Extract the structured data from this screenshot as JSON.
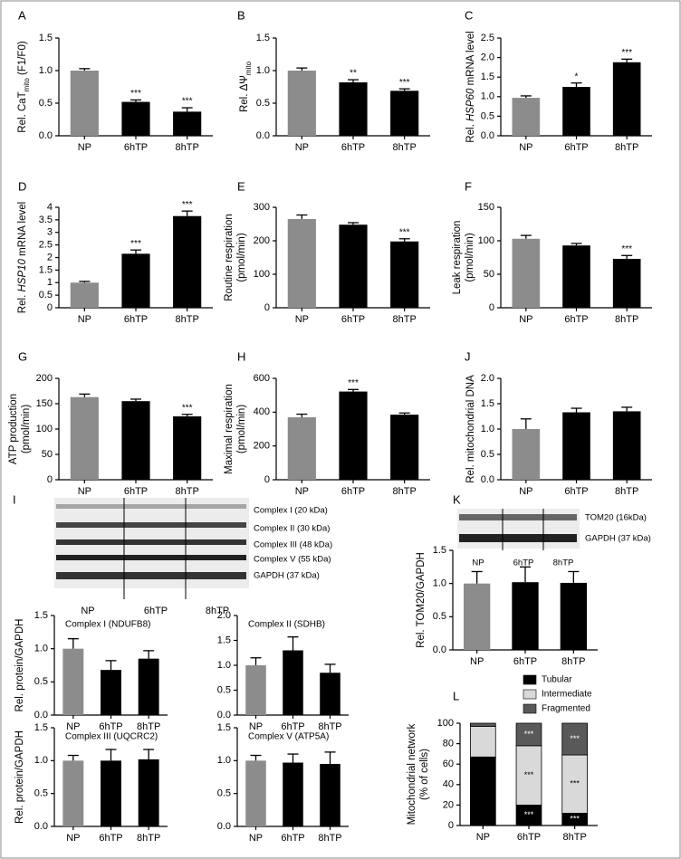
{
  "blot_I": {
    "panel": "I",
    "bands": [
      "Complex I (20 kDa)",
      "Complex II (30 kDa)",
      "Complex III (48 kDa)",
      "Complex V (55 kDa)",
      "GAPDH (37 kDa)"
    ],
    "lanes": [
      "NP",
      "6hTP",
      "8hTP"
    ]
  },
  "blot_K": {
    "bands": [
      "TOM20 (16kDa)",
      "GAPDH (37 kDa)"
    ],
    "lanes": [
      "NP",
      "6hTP",
      "8hTP"
    ]
  },
  "chart_data": [
    {
      "type": "bar",
      "panel": "A",
      "ylabel": "Rel. CaT",
      "ylabel_sub": "mito",
      "ylabel_end": " (F1/F0)",
      "categories": [
        "NP",
        "6hTP",
        "8hTP"
      ],
      "values": [
        1.0,
        0.52,
        0.37
      ],
      "errors": [
        0.03,
        0.03,
        0.06
      ],
      "annotations": [
        null,
        "***",
        "***"
      ],
      "colors": [
        "#8c8c8c",
        "#000000",
        "#000000"
      ],
      "ylim": [
        0,
        1.5
      ],
      "yticks": [
        {
          "value": 0,
          "label": "0.0"
        },
        0.5,
        {
          "value": 1,
          "label": "1.0"
        },
        1.5
      ]
    },
    {
      "type": "bar",
      "panel": "B",
      "ylabel": "Rel. ΔΨ",
      "ylabel_sub": "mito",
      "categories": [
        "NP",
        "6hTP",
        "8hTP"
      ],
      "values": [
        1.0,
        0.82,
        0.69
      ],
      "errors": [
        0.04,
        0.04,
        0.03
      ],
      "annotations": [
        null,
        "**",
        "***"
      ],
      "colors": [
        "#8c8c8c",
        "#000000",
        "#000000"
      ],
      "ylim": [
        0,
        1.5
      ],
      "yticks": [
        {
          "value": 0,
          "label": "0.0"
        },
        0.5,
        {
          "value": 1,
          "label": "1.0"
        },
        1.5
      ]
    },
    {
      "type": "bar",
      "panel": "C",
      "ylabel": "Rel. ",
      "ylabel_italic": "HSP60",
      "ylabel_end": " mRNA level",
      "categories": [
        "NP",
        "6hTP",
        "8hTP"
      ],
      "values": [
        0.97,
        1.25,
        1.88
      ],
      "errors": [
        0.05,
        0.1,
        0.08
      ],
      "annotations": [
        null,
        "*",
        "***"
      ],
      "colors": [
        "#8c8c8c",
        "#000000",
        "#000000"
      ],
      "ylim": [
        0,
        2.5
      ],
      "yticks": [
        {
          "value": 0,
          "label": "0.0"
        },
        0.5,
        {
          "value": 1,
          "label": "1.0"
        },
        1.5,
        {
          "value": 2,
          "label": "2.0"
        },
        2.5
      ]
    },
    {
      "type": "bar",
      "panel": "D",
      "ylabel": "Rel. ",
      "ylabel_italic": "HSP10",
      "ylabel_end": " mRNA level",
      "categories": [
        "NP",
        "6hTP",
        "8hTP"
      ],
      "values": [
        1.0,
        2.15,
        3.65
      ],
      "errors": [
        0.05,
        0.15,
        0.2
      ],
      "annotations": [
        null,
        "***",
        "***"
      ],
      "colors": [
        "#8c8c8c",
        "#000000",
        "#000000"
      ],
      "ylim": [
        0,
        4
      ],
      "yticks": [
        0,
        0.5,
        1,
        1.5,
        2,
        2.5,
        3,
        3.5,
        4
      ]
    },
    {
      "type": "bar",
      "panel": "E",
      "ylabel": "Routine respiration",
      "ylabel2": "(pmol/min)",
      "categories": [
        "NP",
        "6hTP",
        "8hTP"
      ],
      "values": [
        265,
        248,
        198
      ],
      "errors": [
        12,
        6,
        8
      ],
      "annotations": [
        null,
        null,
        "***"
      ],
      "colors": [
        "#8c8c8c",
        "#000000",
        "#000000"
      ],
      "ylim": [
        0,
        300
      ],
      "yticks": [
        0,
        100,
        200,
        300
      ]
    },
    {
      "type": "bar",
      "panel": "F",
      "ylabel": "Leak respiration",
      "ylabel2": "(pmol/min)",
      "categories": [
        "NP",
        "6hTP",
        "8hTP"
      ],
      "values": [
        103,
        93,
        73
      ],
      "errors": [
        5,
        3,
        5
      ],
      "annotations": [
        null,
        null,
        "***"
      ],
      "colors": [
        "#8c8c8c",
        "#000000",
        "#000000"
      ],
      "ylim": [
        0,
        150
      ],
      "yticks": [
        0,
        50,
        100,
        150
      ]
    },
    {
      "type": "bar",
      "panel": "G",
      "ylabel": "ATP production",
      "ylabel2": "(pmol/min)",
      "categories": [
        "NP",
        "6hTP",
        "8hTP"
      ],
      "values": [
        163,
        155,
        125
      ],
      "errors": [
        6,
        4,
        4
      ],
      "annotations": [
        null,
        null,
        "***"
      ],
      "colors": [
        "#8c8c8c",
        "#000000",
        "#000000"
      ],
      "ylim": [
        0,
        200
      ],
      "yticks": [
        0,
        50,
        100,
        150,
        200
      ]
    },
    {
      "type": "bar",
      "panel": "H",
      "ylabel": "Maximal respiration",
      "ylabel2": "(pmol/min)",
      "categories": [
        "NP",
        "6hTP",
        "8hTP"
      ],
      "values": [
        370,
        522,
        385
      ],
      "errors": [
        18,
        12,
        10
      ],
      "annotations": [
        null,
        "***",
        null
      ],
      "colors": [
        "#8c8c8c",
        "#000000",
        "#000000"
      ],
      "ylim": [
        0,
        600
      ],
      "yticks": [
        0,
        200,
        400,
        600
      ]
    },
    {
      "type": "bar",
      "panel": "J",
      "ylabel": "Rel. mitochondrial DNA",
      "categories": [
        "NP",
        "6hTP",
        "8hTP"
      ],
      "values": [
        1.0,
        1.33,
        1.35
      ],
      "errors": [
        0.2,
        0.08,
        0.08
      ],
      "colors": [
        "#8c8c8c",
        "#000000",
        "#000000"
      ],
      "ylim": [
        0,
        2
      ],
      "yticks": [
        {
          "value": 0,
          "label": "0.0"
        },
        0.5,
        {
          "value": 1,
          "label": "1.0"
        },
        1.5,
        {
          "value": 2,
          "label": "2.0"
        }
      ]
    },
    {
      "type": "bar",
      "title": "Complex I (NDUFB8)",
      "ylabel": "Rel. protein/GAPDH",
      "categories": [
        "NP",
        "6hTP",
        "8hTP"
      ],
      "values": [
        1.0,
        0.68,
        0.85
      ],
      "errors": [
        0.15,
        0.14,
        0.12
      ],
      "colors": [
        "#8c8c8c",
        "#000000",
        "#000000"
      ],
      "ylim": [
        0,
        1.5
      ],
      "yticks": [
        {
          "value": 0,
          "label": "0.0"
        },
        0.5,
        {
          "value": 1,
          "label": "1.0"
        },
        1.5
      ]
    },
    {
      "type": "bar",
      "title": "Complex II (SDHB)",
      "categories": [
        "NP",
        "6hTP",
        "8hTP"
      ],
      "values": [
        1.0,
        1.3,
        0.85
      ],
      "errors": [
        0.15,
        0.27,
        0.17
      ],
      "colors": [
        "#8c8c8c",
        "#000000",
        "#000000"
      ],
      "ylim": [
        0,
        2
      ],
      "yticks": [
        {
          "value": 0,
          "label": "0.0"
        },
        0.5,
        {
          "value": 1,
          "label": "1.0"
        },
        1.5,
        {
          "value": 2,
          "label": "2.0"
        }
      ]
    },
    {
      "type": "bar",
      "title": "Complex III (UQCRC2)",
      "ylabel": "Rel. protein/GAPDH",
      "categories": [
        "NP",
        "6hTP",
        "8hTP"
      ],
      "values": [
        1.0,
        1.0,
        1.02
      ],
      "errors": [
        0.08,
        0.17,
        0.15
      ],
      "colors": [
        "#8c8c8c",
        "#000000",
        "#000000"
      ],
      "ylim": [
        0,
        1.5
      ],
      "yticks": [
        {
          "value": 0,
          "label": "0.0"
        },
        0.5,
        {
          "value": 1,
          "label": "1.0"
        },
        1.5
      ]
    },
    {
      "type": "bar",
      "title": "Complex V (ATP5A)",
      "categories": [
        "NP",
        "6hTP",
        "8hTP"
      ],
      "values": [
        1.0,
        0.97,
        0.95
      ],
      "errors": [
        0.08,
        0.13,
        0.18
      ],
      "colors": [
        "#8c8c8c",
        "#000000",
        "#000000"
      ],
      "ylim": [
        0,
        1.5
      ],
      "yticks": [
        {
          "value": 0,
          "label": "0.0"
        },
        0.5,
        {
          "value": 1,
          "label": "1.0"
        },
        1.5
      ]
    },
    {
      "type": "bar",
      "panel": "K",
      "ylabel": "Rel. TOM20/GAPDH",
      "categories": [
        "NP",
        "6hTP",
        "8hTP"
      ],
      "values": [
        1.0,
        1.02,
        1.01
      ],
      "errors": [
        0.18,
        0.23,
        0.17
      ],
      "colors": [
        "#8c8c8c",
        "#000000",
        "#000000"
      ],
      "ylim": [
        0,
        1.5
      ],
      "yticks": [
        {
          "value": 0,
          "label": "0.0"
        },
        0.5,
        {
          "value": 1,
          "label": "1.0"
        },
        1.5
      ]
    },
    {
      "type": "stacked_bar",
      "panel": "L",
      "ylabel": "Mitochondrial network",
      "ylabel2": "(% of cells)",
      "categories": [
        "NP",
        "6hTP",
        "8hTP"
      ],
      "series": [
        {
          "name": "Tubular",
          "color": "#000000",
          "values": [
            67,
            20,
            12
          ],
          "annotations": [
            null,
            "***",
            "***"
          ]
        },
        {
          "name": "Intermediate",
          "color": "#d9d9d9",
          "values": [
            30,
            58,
            57
          ],
          "annotations": [
            null,
            "***",
            "***"
          ]
        },
        {
          "name": "Fragmented",
          "color": "#595959",
          "values": [
            3,
            22,
            31
          ],
          "annotations": [
            null,
            "***",
            "***"
          ]
        }
      ],
      "ylim": [
        0,
        100
      ],
      "yticks": [
        0,
        20,
        40,
        60,
        80,
        100
      ]
    }
  ]
}
